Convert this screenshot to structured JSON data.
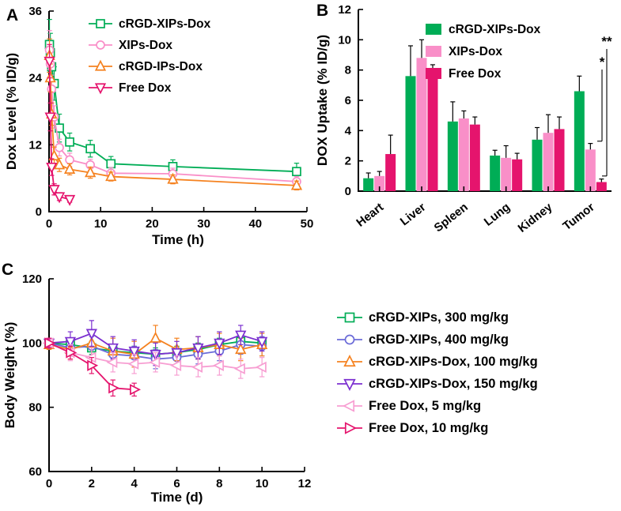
{
  "panel_labels": {
    "A": "A",
    "B": "B",
    "C": "C"
  },
  "colors": {
    "green": "#00ad56",
    "pink": "#f98fc8",
    "orange": "#f58220",
    "magenta": "#e5146d",
    "blue": "#6b6bd8",
    "purple": "#7b2fd0",
    "lightpink": "#f79ed2",
    "axis": "#000000"
  },
  "chart_data": [
    {
      "panel": "A",
      "type": "line",
      "xlabel": "Time (h)",
      "ylabel": "Dox Level (% ID/g)",
      "xlim": [
        0,
        50
      ],
      "xticks": [
        0,
        10,
        20,
        30,
        40,
        50
      ],
      "ylim": [
        0,
        36
      ],
      "yticks": [
        0,
        12,
        24,
        36
      ],
      "legend_position": "top-inside",
      "series": [
        {
          "name": "cRGD-XIPs-Dox",
          "color": "#00ad56",
          "marker": "square",
          "x": [
            0.083,
            0.25,
            0.5,
            1,
            2,
            4,
            8,
            12,
            24,
            48
          ],
          "y": [
            30,
            28.5,
            26,
            23,
            15,
            12.5,
            11.3,
            8.6,
            8.1,
            7.2
          ],
          "err": [
            4.5,
            3.5,
            3,
            3,
            2.5,
            1.6,
            1.5,
            1.3,
            1.2,
            1.5
          ]
        },
        {
          "name": "XIPs-Dox",
          "color": "#f98fc8",
          "marker": "circle",
          "x": [
            0.083,
            0.25,
            0.5,
            1,
            2,
            4,
            8,
            12,
            24,
            48
          ],
          "y": [
            29,
            26.5,
            22,
            17,
            11.5,
            9.3,
            8.4,
            6.9,
            6.8,
            5.4
          ],
          "err": [
            3.5,
            3,
            2.5,
            2,
            1.5,
            1.2,
            1,
            1,
            1,
            0.9
          ]
        },
        {
          "name": "cRGD-IPs-Dox",
          "color": "#f58220",
          "marker": "triangle-up",
          "x": [
            0.083,
            0.25,
            0.5,
            1,
            2,
            4,
            8,
            12,
            24,
            48
          ],
          "y": [
            28,
            24,
            17.5,
            10,
            8.4,
            7.6,
            7,
            6.3,
            5.8,
            4.7
          ],
          "err": [
            3,
            2.5,
            2,
            1.6,
            1.2,
            1,
            1,
            0.8,
            0.8,
            0.8
          ]
        },
        {
          "name": "Free Dox",
          "color": "#e5146d",
          "marker": "triangle-down",
          "x": [
            0.083,
            0.25,
            0.5,
            1,
            2,
            4
          ],
          "y": [
            27,
            17,
            8,
            4,
            2.7,
            2.2
          ],
          "err": [
            3,
            2.5,
            1.5,
            1,
            0.7,
            0.5
          ]
        }
      ]
    },
    {
      "panel": "B",
      "type": "bar",
      "xlabel": "",
      "ylabel": "DOX Uptake (% ID/g)",
      "categories": [
        "Heart",
        "Liver",
        "Spleen",
        "Lung",
        "Kidney",
        "Tumor"
      ],
      "ylim": [
        0,
        12
      ],
      "yticks": [
        0,
        2,
        4,
        6,
        8,
        10,
        12
      ],
      "legend_position": "top-right-inside",
      "series": [
        {
          "name": "cRGD-XIPs-Dox",
          "color": "#00ad56",
          "values": [
            0.85,
            7.6,
            4.6,
            2.35,
            3.4,
            6.6
          ],
          "err": [
            0.35,
            2.0,
            1.3,
            0.35,
            0.8,
            1.0
          ]
        },
        {
          "name": "XIPs-Dox",
          "color": "#f98fc8",
          "values": [
            1.0,
            8.8,
            4.8,
            2.2,
            3.85,
            2.75
          ],
          "err": [
            0.3,
            1.2,
            0.5,
            0.8,
            1.2,
            0.4
          ]
        },
        {
          "name": "Free Dox",
          "color": "#e5146d",
          "values": [
            2.45,
            7.8,
            4.4,
            2.1,
            4.1,
            0.6
          ],
          "err": [
            1.25,
            0.55,
            0.5,
            0.4,
            0.8,
            0.2
          ]
        }
      ],
      "significance": [
        {
          "label": "**",
          "pair": [
            "cRGD-XIPs-Dox",
            "Free Dox"
          ],
          "category": "Tumor"
        },
        {
          "label": "*",
          "pair": [
            "XIPs-Dox",
            "Free Dox"
          ],
          "category": "Tumor"
        }
      ]
    },
    {
      "panel": "C",
      "type": "line",
      "xlabel": "Time (d)",
      "ylabel": "Body Weight (%)",
      "xlim": [
        0,
        12
      ],
      "xticks": [
        0,
        2,
        4,
        6,
        8,
        10,
        12
      ],
      "ylim": [
        60,
        120
      ],
      "yticks": [
        60,
        80,
        100,
        120
      ],
      "legend_position": "right-outside",
      "series": [
        {
          "name": "cRGD-XIPs, 300 mg/kg",
          "color": "#00ad56",
          "marker": "square",
          "x": [
            0,
            1,
            2,
            3,
            4,
            5,
            6,
            7,
            8,
            9,
            10
          ],
          "y": [
            100,
            99.5,
            98.5,
            97.5,
            97,
            96.5,
            97,
            98,
            99.5,
            100.5,
            100
          ],
          "err": [
            1.5,
            2,
            2,
            2,
            2,
            2,
            2,
            2,
            2,
            2,
            2
          ]
        },
        {
          "name": "cRGD-XIPs, 400 mg/kg",
          "color": "#6b6bd8",
          "marker": "circle",
          "x": [
            0,
            1,
            2,
            3,
            4,
            5,
            6,
            7,
            8,
            9,
            10
          ],
          "y": [
            100,
            98.5,
            99,
            96.5,
            96,
            95,
            95.5,
            96.5,
            97.5,
            99.5,
            99
          ],
          "err": [
            1.5,
            2.5,
            3,
            3,
            3,
            3,
            3,
            3,
            3,
            3,
            3
          ]
        },
        {
          "name": "cRGD-XIPs-Dox, 100 mg/kg",
          "color": "#f58220",
          "marker": "triangle-up",
          "x": [
            0,
            1,
            2,
            3,
            4,
            5,
            6,
            7,
            8,
            9,
            10
          ],
          "y": [
            99.5,
            98,
            100,
            97.5,
            96.5,
            101.5,
            98,
            98.5,
            99.5,
            98,
            99.5
          ],
          "err": [
            1.5,
            3,
            4,
            4,
            4,
            4,
            3.5,
            3.5,
            3.5,
            3.5,
            3.5
          ]
        },
        {
          "name": "cRGD-XIPs-Dox, 150 mg/kg",
          "color": "#7b2fd0",
          "marker": "triangle-down",
          "x": [
            0,
            1,
            2,
            3,
            4,
            5,
            6,
            7,
            8,
            9,
            10
          ],
          "y": [
            100,
            100.5,
            103,
            98.5,
            97.5,
            96.5,
            97,
            98.5,
            100,
            102.5,
            100.5
          ],
          "err": [
            1.5,
            3,
            4,
            3.5,
            3.5,
            3.5,
            3.5,
            3.5,
            3.5,
            3,
            3
          ]
        },
        {
          "name": "Free Dox, 5 mg/kg",
          "color": "#f79ed2",
          "marker": "triangle-left",
          "x": [
            0,
            1,
            2,
            3,
            4,
            5,
            6,
            7,
            8,
            9,
            10
          ],
          "y": [
            100,
            97,
            95.5,
            94,
            93.5,
            94,
            93,
            92.5,
            93,
            92,
            92.5
          ],
          "err": [
            1.5,
            2.5,
            3,
            3,
            3,
            3,
            3,
            3,
            3,
            3,
            3
          ]
        },
        {
          "name": "Free Dox, 10 mg/kg",
          "color": "#e5146d",
          "marker": "triangle-right",
          "x": [
            0,
            1,
            2,
            3,
            4
          ],
          "y": [
            100,
            97,
            93,
            86,
            85.5
          ],
          "err": [
            1.5,
            2,
            2.5,
            2.5,
            2
          ]
        }
      ]
    }
  ]
}
